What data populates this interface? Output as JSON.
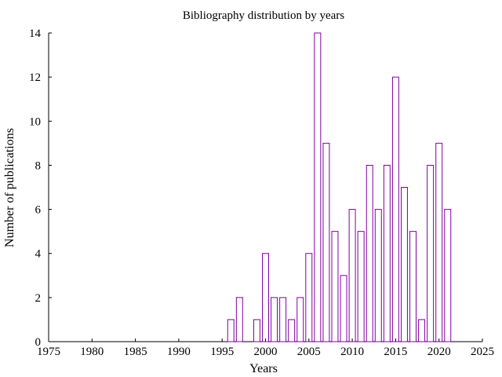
{
  "chart_data": {
    "type": "bar",
    "title": "Bibliography distribution by years",
    "xlabel": "Years",
    "ylabel": "Number of publications",
    "xlim": [
      1975,
      2025
    ],
    "ylim": [
      0,
      14
    ],
    "x_ticks": [
      1975,
      1980,
      1985,
      1990,
      1995,
      2000,
      2005,
      2010,
      2015,
      2020,
      2025
    ],
    "y_ticks": [
      0,
      2,
      4,
      6,
      8,
      10,
      12,
      14
    ],
    "grid": false,
    "bar_color": "#8000a0",
    "x": [
      1996,
      1997,
      1999,
      2000,
      2001,
      2002,
      2003,
      2004,
      2005,
      2006,
      2007,
      2008,
      2009,
      2010,
      2011,
      2012,
      2013,
      2014,
      2015,
      2016,
      2017,
      2018,
      2019,
      2020,
      2021
    ],
    "values": [
      1,
      2,
      1,
      4,
      2,
      2,
      1,
      2,
      4,
      14,
      9,
      5,
      3,
      6,
      5,
      8,
      6,
      8,
      12,
      7,
      5,
      1,
      8,
      9,
      6
    ]
  }
}
